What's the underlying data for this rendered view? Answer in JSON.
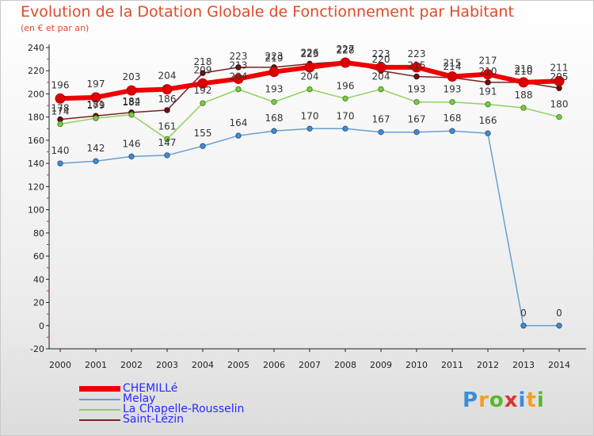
{
  "chart_data": {
    "type": "line",
    "title": "Evolution de la Dotation Globale de Fonctionnement par Habitant",
    "subtitle": "(en € et par an)",
    "xlabel": "",
    "ylabel": "",
    "x": [
      "2000",
      "2001",
      "2002",
      "2003",
      "2004",
      "2005",
      "2006",
      "2007",
      "2008",
      "2009",
      "2010",
      "2011",
      "2012",
      "2013",
      "2014"
    ],
    "ylim": [
      -20,
      240
    ],
    "yticks": [
      -20,
      0,
      20,
      40,
      60,
      80,
      100,
      120,
      140,
      160,
      180,
      200,
      220,
      240
    ],
    "grid": false,
    "legend_position": "bottom-left",
    "series": [
      {
        "name": "CHEMILLé",
        "color": "#ee0000",
        "values": [
          196,
          197,
          203,
          204,
          209,
          213,
          219,
          223,
          227,
          223,
          223,
          215,
          217,
          210,
          211
        ]
      },
      {
        "name": "Melay",
        "color": "#6a9ed2",
        "values": [
          140,
          142,
          146,
          147,
          155,
          164,
          168,
          170,
          170,
          167,
          167,
          168,
          166,
          0,
          0
        ]
      },
      {
        "name": "La Chapelle-Rousselin",
        "color": "#92d060",
        "values": [
          174,
          179,
          182,
          161,
          192,
          204,
          193,
          204,
          196,
          204,
          193,
          193,
          191,
          188,
          180
        ]
      },
      {
        "name": "Saint-Lézin",
        "color": "#7a2020",
        "values": [
          178,
          181,
          184,
          186,
          218,
          223,
          223,
          226,
          228,
          220,
          215,
          214,
          210,
          210,
          205
        ]
      }
    ]
  },
  "logo": {
    "letters": [
      "P",
      "r",
      "o",
      "x",
      "i",
      "t",
      "i"
    ],
    "colors": [
      "#3a8dd8",
      "#f0a020",
      "#58b830",
      "#e03030",
      "#3a8dd8",
      "#f0a020",
      "#58b830"
    ]
  }
}
